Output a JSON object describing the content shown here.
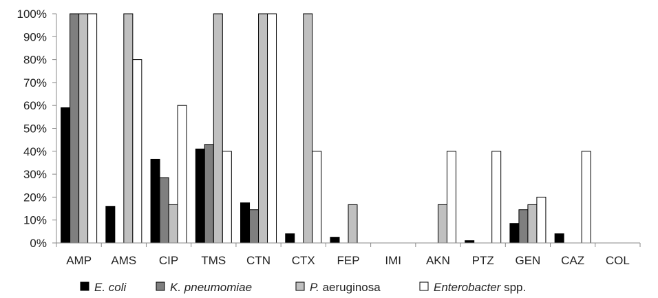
{
  "chart_data": {
    "type": "bar",
    "categories": [
      "AMP",
      "AMS",
      "CIP",
      "TMS",
      "CTN",
      "CTX",
      "FEP",
      "IMI",
      "AKN",
      "PTZ",
      "GEN",
      "CAZ",
      "COL"
    ],
    "y_tick_labels": [
      "0%",
      "10%",
      "20%",
      "30%",
      "40%",
      "50%",
      "60%",
      "70%",
      "80%",
      "90%",
      "100%"
    ],
    "ylim": [
      0,
      100
    ],
    "grid": false,
    "legend_position": "bottom",
    "series": [
      {
        "name": "E. coli",
        "legend_italic": "E. coli",
        "legend_plain": "",
        "color": "#000000",
        "values": [
          59,
          16,
          36.5,
          41,
          17.5,
          4,
          2.5,
          0,
          0,
          1,
          8.5,
          4,
          0
        ]
      },
      {
        "name": "K. pneumomiae",
        "legend_italic": "K. pneumomiae",
        "legend_plain": "",
        "color": "#7f7f7f",
        "values": [
          100,
          0,
          28.5,
          43,
          14.5,
          0,
          0,
          0,
          0,
          0,
          14.5,
          0,
          0
        ]
      },
      {
        "name": "P. aeruginosa",
        "legend_italic": "P.",
        "legend_plain": " aeruginosa",
        "color": "#c0c0c0",
        "values": [
          100,
          100,
          16.7,
          100,
          100,
          100,
          16.7,
          0,
          16.7,
          0,
          16.7,
          0,
          0
        ]
      },
      {
        "name": "Enterobacter spp.",
        "legend_italic": "Enterobacter",
        "legend_plain": " spp.",
        "color": "#ffffff",
        "values": [
          100,
          80,
          60,
          40,
          100,
          40,
          0,
          0,
          40,
          40,
          20,
          40,
          0
        ]
      }
    ]
  }
}
